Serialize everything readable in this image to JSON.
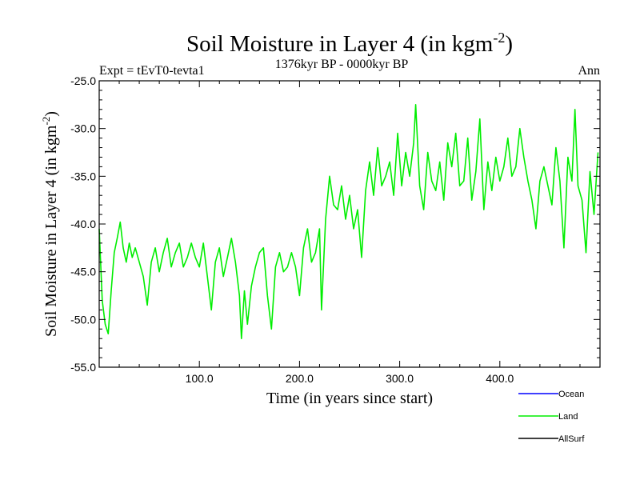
{
  "chart_data": {
    "type": "line",
    "title": "Soil Moisture in Layer 4 (in kgm",
    "title_sup": "-2",
    "title_close": ")",
    "subtitle": "1376kyr BP - 0000kyr BP",
    "left_label": "Expt = tEvT0-tevta1",
    "right_label": "Ann",
    "xlabel": "Time (in years since start)",
    "ylabel": "Soil Moisture in Layer 4 (in kgm",
    "ylabel_sup": "-2",
    "ylabel_close": ")",
    "xlim": [
      0,
      500
    ],
    "ylim": [
      -55,
      -25
    ],
    "xticks": [
      100,
      200,
      300,
      400
    ],
    "xtick_labels": [
      "100.0",
      "200.0",
      "300.0",
      "400.0"
    ],
    "yticks": [
      -25,
      -30,
      -35,
      -40,
      -45,
      -50,
      -55
    ],
    "ytick_labels": [
      "-25.0",
      "-30.0",
      "-35.0",
      "-40.0",
      "-45.0",
      "-50.0",
      "-55.0"
    ],
    "legend_position": "bottom-right",
    "series": [
      {
        "name": "Ocean",
        "color": "#0000ff",
        "values": []
      },
      {
        "name": "Land",
        "color": "#00ee00",
        "x": [
          0,
          3,
          6,
          9,
          12,
          15,
          18,
          21,
          24,
          27,
          30,
          33,
          36,
          40,
          44,
          48,
          52,
          56,
          60,
          64,
          68,
          72,
          76,
          80,
          84,
          88,
          92,
          96,
          100,
          104,
          108,
          112,
          116,
          120,
          124,
          128,
          132,
          136,
          140,
          142,
          145,
          148,
          152,
          156,
          160,
          164,
          168,
          172,
          176,
          180,
          184,
          188,
          192,
          196,
          200,
          204,
          208,
          212,
          216,
          220,
          222,
          226,
          230,
          234,
          238,
          242,
          246,
          250,
          254,
          258,
          262,
          266,
          270,
          274,
          278,
          282,
          286,
          290,
          294,
          298,
          302,
          306,
          310,
          314,
          316,
          320,
          324,
          328,
          332,
          336,
          340,
          344,
          348,
          352,
          356,
          360,
          364,
          368,
          372,
          376,
          380,
          384,
          388,
          392,
          396,
          400,
          404,
          408,
          412,
          416,
          420,
          424,
          428,
          432,
          436,
          440,
          444,
          448,
          452,
          456,
          460,
          464,
          468,
          472,
          475,
          478,
          482,
          486,
          490,
          494,
          498
        ],
        "values": [
          -40.5,
          -48.0,
          -50.5,
          -51.5,
          -47.0,
          -43.0,
          -41.5,
          -39.8,
          -42.5,
          -44.0,
          -42.0,
          -43.5,
          -42.5,
          -44.0,
          -45.5,
          -48.5,
          -44.0,
          -42.5,
          -45.0,
          -43.0,
          -41.5,
          -44.5,
          -43.0,
          -42.0,
          -44.5,
          -43.5,
          -42.0,
          -43.5,
          -44.5,
          -42.0,
          -45.5,
          -49.0,
          -44.0,
          -42.5,
          -45.5,
          -43.5,
          -41.5,
          -44.0,
          -47.5,
          -52.0,
          -47.0,
          -50.5,
          -46.5,
          -44.5,
          -43.0,
          -42.5,
          -47.5,
          -51.0,
          -44.5,
          -43.0,
          -45.0,
          -44.5,
          -43.0,
          -44.5,
          -47.5,
          -42.5,
          -40.5,
          -44.0,
          -43.0,
          -40.5,
          -49.0,
          -39.5,
          -35.0,
          -38.0,
          -38.5,
          -36.0,
          -39.5,
          -37.0,
          -40.5,
          -38.5,
          -43.5,
          -36.5,
          -33.5,
          -37.0,
          -32.0,
          -36.0,
          -35.0,
          -33.5,
          -37.0,
          -30.5,
          -36.0,
          -32.5,
          -35.0,
          -31.5,
          -27.5,
          -36.0,
          -38.5,
          -32.5,
          -35.5,
          -36.5,
          -33.5,
          -37.5,
          -31.5,
          -34.0,
          -30.5,
          -36.0,
          -35.5,
          -31.0,
          -37.5,
          -34.5,
          -29.0,
          -38.5,
          -33.5,
          -36.5,
          -33.0,
          -35.5,
          -34.0,
          -31.0,
          -35.0,
          -34.0,
          -30.0,
          -33.0,
          -35.5,
          -37.5,
          -40.5,
          -35.5,
          -34.0,
          -36.0,
          -38.0,
          -32.0,
          -35.5,
          -42.5,
          -33.0,
          -35.5,
          -28.0,
          -36.0,
          -37.5,
          -43.0,
          -34.5,
          -39.0,
          -32.5
        ]
      },
      {
        "name": "AllSurf",
        "color": "#000000",
        "values": []
      }
    ]
  }
}
